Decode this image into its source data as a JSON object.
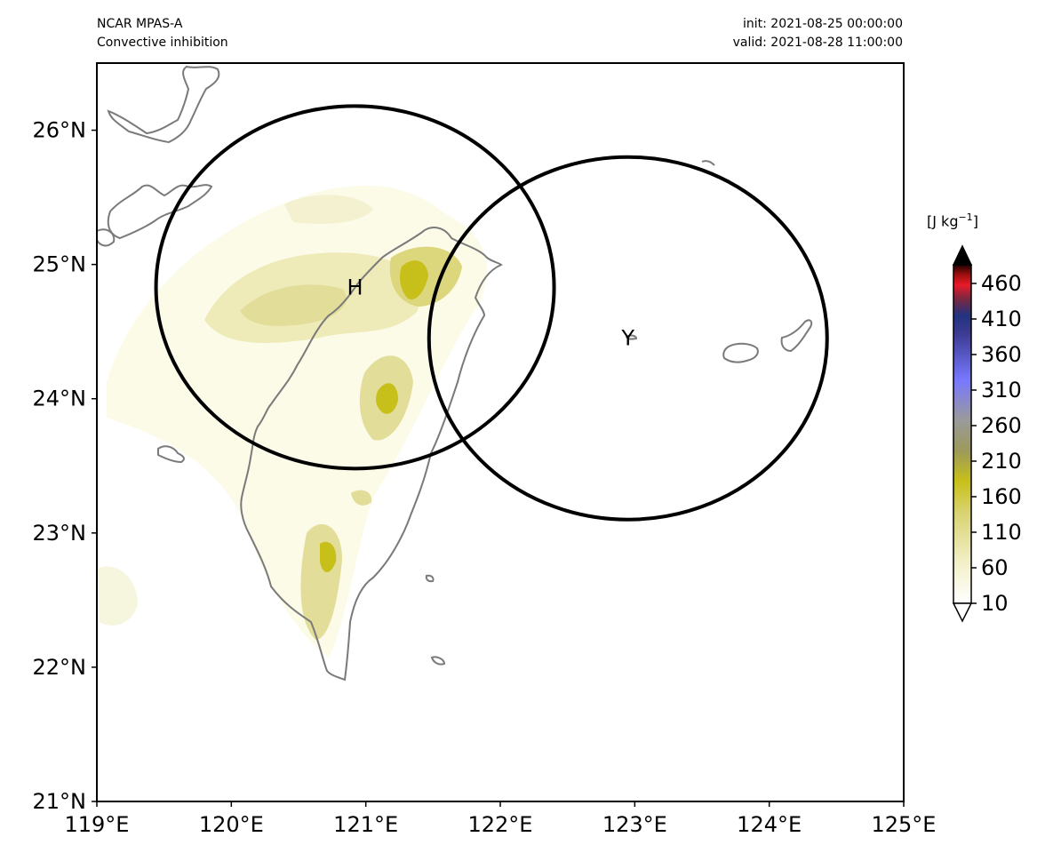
{
  "header": {
    "model": "NCAR MPAS-A",
    "field": "Convective inhibition",
    "init": "init: 2021-08-25 00:00:00",
    "valid": "valid: 2021-08-28 11:00:00"
  },
  "map": {
    "lon_range": [
      119,
      125
    ],
    "lat_range": [
      21,
      26.5
    ],
    "lon_ticks": [
      "119°E",
      "120°E",
      "121°E",
      "122°E",
      "123°E",
      "124°E",
      "125°E"
    ],
    "lat_ticks": [
      "21°N",
      "22°N",
      "23°N",
      "24°N",
      "25°N",
      "26°N"
    ],
    "markers": [
      {
        "label": "H",
        "lon": 120.92,
        "lat": 24.83
      },
      {
        "label": "Y",
        "lon": 122.95,
        "lat": 24.45
      }
    ]
  },
  "colorbar": {
    "units_prefix": "[J kg",
    "units_sup": "−1",
    "units_suffix": "]",
    "tick_labels": [
      "10",
      "60",
      "110",
      "160",
      "210",
      "260",
      "310",
      "360",
      "410",
      "460"
    ],
    "colors": {
      "low": "#fffff2",
      "olive": "#c8c01a",
      "gray": "#9a9a9a",
      "blue": "#7878ff",
      "navy": "#23337f",
      "red": "#e81a2a",
      "black": "#000000"
    }
  }
}
